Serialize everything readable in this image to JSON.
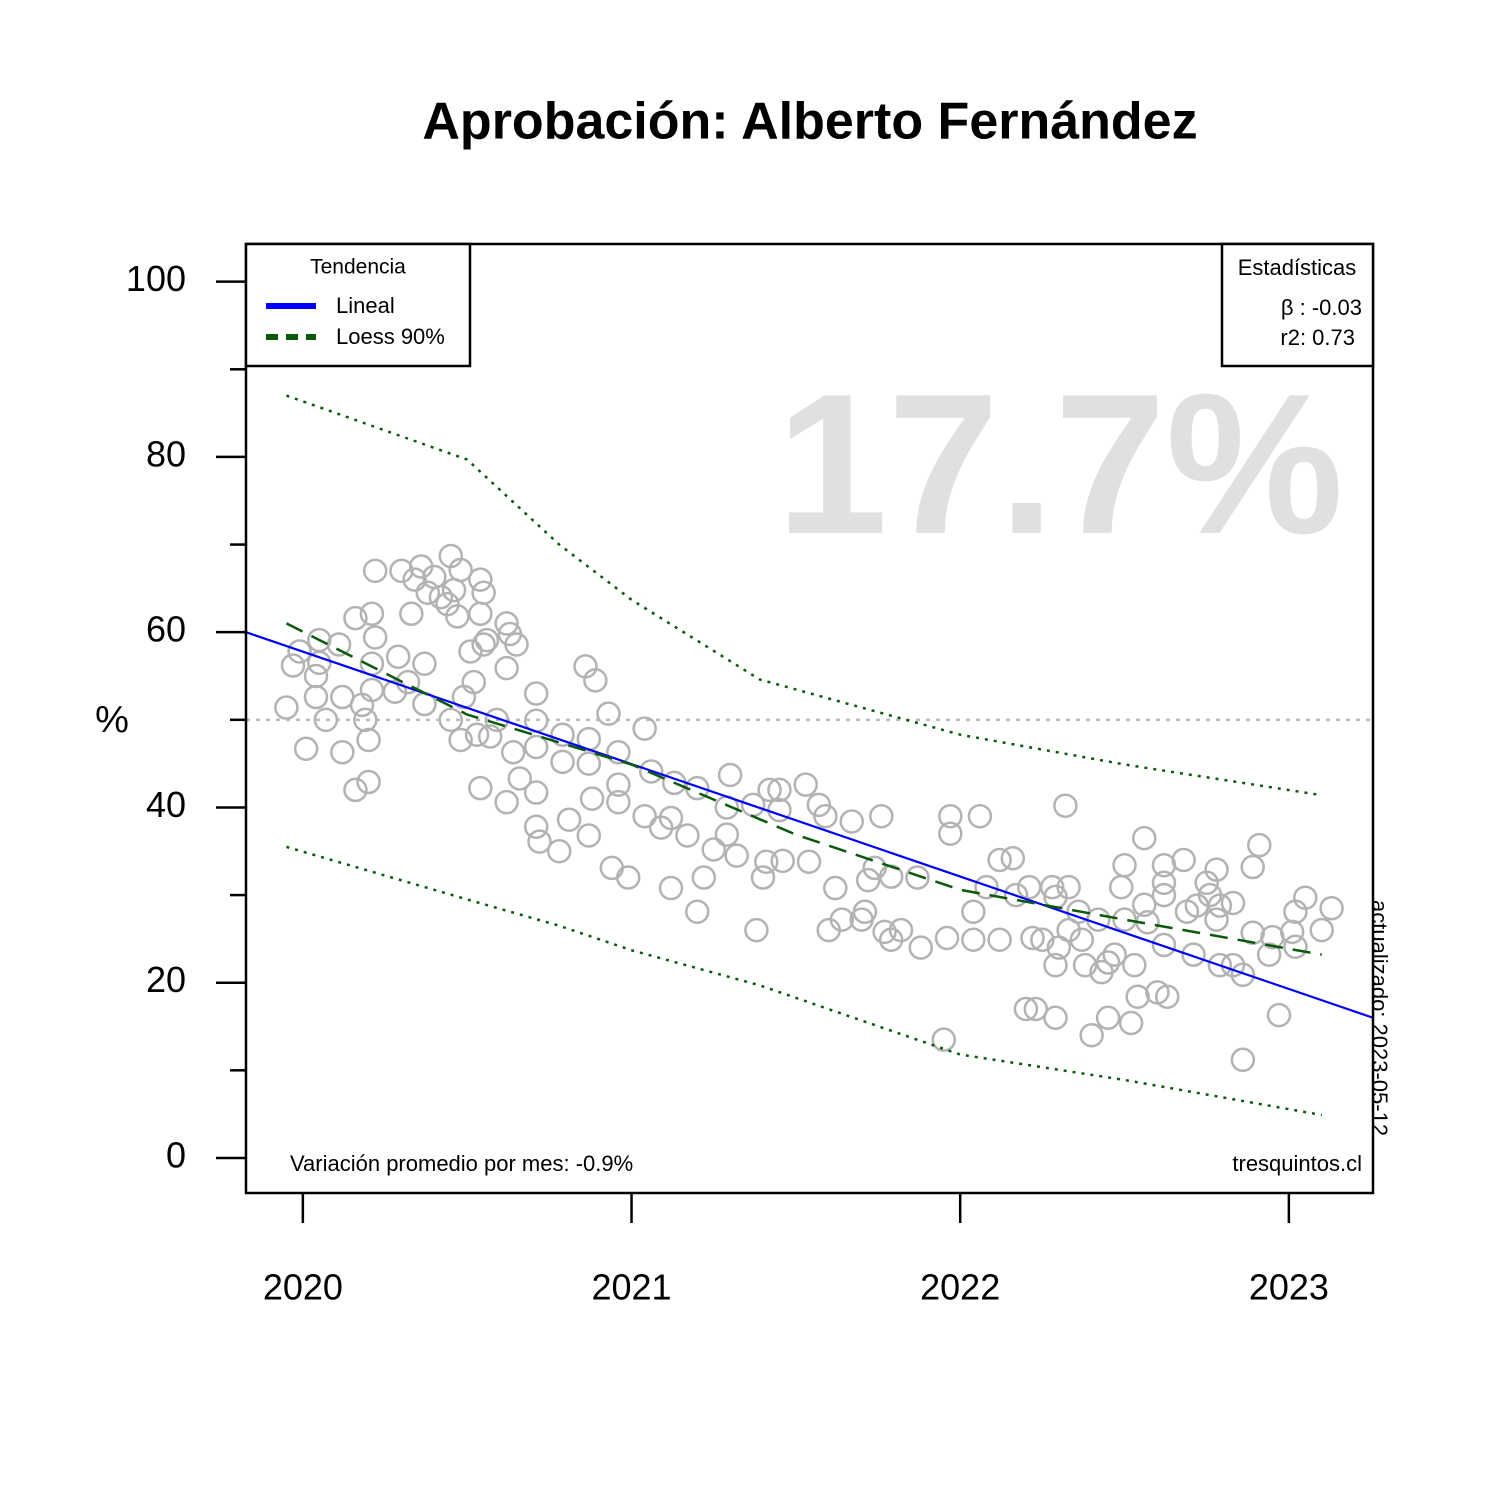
{
  "chart_data": {
    "type": "scatter",
    "title": "Aprobación: Alberto Fernández",
    "ylabel": "%",
    "xlim": [
      2019.827,
      2023.256
    ],
    "ylim": [
      -4,
      104.3
    ],
    "xticks": [
      2020,
      2021,
      2022,
      2023
    ],
    "yticks": [
      0,
      20,
      40,
      60,
      80,
      100
    ],
    "yminor": [
      10,
      30,
      50,
      70,
      90
    ],
    "hline": 50,
    "color": "#b3b3b3",
    "x": [
      2019.95,
      2019.97,
      2019.99,
      2020.01,
      2020.04,
      2020.04,
      2020.05,
      2020.05,
      2020.07,
      2020.11,
      2020.12,
      2020.12,
      2020.16,
      2020.16,
      2020.18,
      2020.19,
      2020.2,
      2020.2,
      2020.21,
      2020.21,
      2020.22,
      2020.22,
      2020.21,
      2020.28,
      2020.29,
      2020.3,
      2020.32,
      2020.33,
      2020.34,
      2020.36,
      2020.37,
      2020.37,
      2020.38,
      2020.4,
      2020.42,
      2020.44,
      2020.45,
      2020.46,
      2020.47,
      2020.48,
      2020.48,
      2020.45,
      2020.49,
      2020.51,
      2020.52,
      2020.53,
      2020.54,
      2020.54,
      2020.54,
      2020.55,
      2020.55,
      2020.56,
      2020.57,
      2020.59,
      2020.62,
      2020.62,
      2020.62,
      2020.63,
      2020.64,
      2020.65,
      2020.66,
      2020.71,
      2020.71,
      2020.71,
      2020.71,
      2020.71,
      2020.72,
      2020.78,
      2020.79,
      2020.79,
      2020.81,
      2020.86,
      2020.87,
      2020.88,
      2020.89,
      2020.87,
      2020.87,
      2020.93,
      2020.94,
      2020.96,
      2020.96,
      2020.96,
      2020.99,
      2021.04,
      2021.04,
      2021.06,
      2021.09,
      2021.12,
      2021.13,
      2021.12,
      2021.17,
      2021.2,
      2021.2,
      2021.22,
      2021.25,
      2021.29,
      2021.29,
      2021.3,
      2021.32,
      2021.37,
      2021.38,
      2021.4,
      2021.41,
      2021.42,
      2021.45,
      2021.46,
      2021.45,
      2021.53,
      2021.54,
      2021.57,
      2021.59,
      2021.6,
      2021.62,
      2021.64,
      2021.67,
      2021.7,
      2021.71,
      2021.72,
      2021.74,
      2021.76,
      2021.77,
      2021.79,
      2021.79,
      2021.82,
      2021.87,
      2021.88,
      2021.95,
      2021.96,
      2021.97,
      2021.97,
      2022.04,
      2022.04,
      2022.06,
      2022.08,
      2022.12,
      2022.12,
      2022.16,
      2022.17,
      2022.2,
      2022.21,
      2022.22,
      2022.23,
      2022.25,
      2022.28,
      2022.29,
      2022.29,
      2022.29,
      2022.3,
      2022.32,
      2022.33,
      2022.33,
      2022.36,
      2022.37,
      2022.38,
      2022.4,
      2022.42,
      2022.43,
      2022.45,
      2022.45,
      2022.47,
      2022.49,
      2022.5,
      2022.5,
      2022.52,
      2022.53,
      2022.54,
      2022.56,
      2022.56,
      2022.57,
      2022.6,
      2022.62,
      2022.62,
      2022.62,
      2022.62,
      2022.63,
      2022.68,
      2022.69,
      2022.71,
      2022.72,
      2022.75,
      2022.76,
      2022.78,
      2022.78,
      2022.79,
      2022.79,
      2022.83,
      2022.83,
      2022.86,
      2022.86,
      2022.89,
      2022.89,
      2022.91,
      2022.94,
      2022.95,
      2022.97,
      2023.01,
      2023.02,
      2023.05,
      2023.1,
      2023.13,
      2023.02
    ],
    "values": [
      51.4,
      56.2,
      57.8,
      46.7,
      55.0,
      52.6,
      59.1,
      56.5,
      50.0,
      58.6,
      52.6,
      46.3,
      61.6,
      42.0,
      51.7,
      50.0,
      42.9,
      47.7,
      53.4,
      62.1,
      67.0,
      59.4,
      56.4,
      53.2,
      57.2,
      67.0,
      54.3,
      62.1,
      66.0,
      67.5,
      51.8,
      56.4,
      64.5,
      66.3,
      64.0,
      63.2,
      68.7,
      64.8,
      61.8,
      67.1,
      47.7,
      50.0,
      52.6,
      57.8,
      54.3,
      48.3,
      42.2,
      66.0,
      62.1,
      64.5,
      58.6,
      59.1,
      48.1,
      50.0,
      40.6,
      61.0,
      55.9,
      59.8,
      46.3,
      58.6,
      43.3,
      53.0,
      41.7,
      49.9,
      46.9,
      37.8,
      36.1,
      35.0,
      48.3,
      45.2,
      38.6,
      56.1,
      36.8,
      41.0,
      54.5,
      45.0,
      47.8,
      50.7,
      33.1,
      40.6,
      46.3,
      42.6,
      32.0,
      49.0,
      39.0,
      44.1,
      37.7,
      30.8,
      42.8,
      38.8,
      36.8,
      42.2,
      28.1,
      32.0,
      35.2,
      40.0,
      36.9,
      43.7,
      34.5,
      40.3,
      26.0,
      32.0,
      33.8,
      42.0,
      42.0,
      33.9,
      39.7,
      42.6,
      33.8,
      40.3,
      39.0,
      26.0,
      30.8,
      27.2,
      38.4,
      27.2,
      28.1,
      31.7,
      33.1,
      39.0,
      25.8,
      24.9,
      32.1,
      26.0,
      32.0,
      24.0,
      13.5,
      25.1,
      39.0,
      37.0,
      24.9,
      28.1,
      39.0,
      30.9,
      24.9,
      34.0,
      34.2,
      30.0,
      17.0,
      30.9,
      25.1,
      17.0,
      24.9,
      30.9,
      16.0,
      22.0,
      29.8,
      24.0,
      40.2,
      30.9,
      26.0,
      28.1,
      24.9,
      22.0,
      14.0,
      27.2,
      21.2,
      22.3,
      16.0,
      23.2,
      30.9,
      33.4,
      27.2,
      15.4,
      22.0,
      18.4,
      36.5,
      28.9,
      26.9,
      18.9,
      33.4,
      31.4,
      30.0,
      24.3,
      18.4,
      34.0,
      28.1,
      23.2,
      28.8,
      31.4,
      30.0,
      32.9,
      27.2,
      22.0,
      28.8,
      29.1,
      22.0,
      20.9,
      11.2,
      33.2,
      25.7,
      35.7,
      23.2,
      25.2,
      16.3,
      25.8,
      28.1,
      29.7,
      26.0,
      28.5,
      24.1
    ],
    "legend_title": "Tendencia",
    "trend": [
      {
        "name": "Lineal",
        "color": "#0000ff",
        "x": [
          2019.827,
          2023.256
        ],
        "values": [
          60,
          16
        ]
      },
      {
        "name": "Loess 90%",
        "color": "#0b5a0b",
        "x": [
          2019.95,
          2020.5,
          2021.0,
          2021.5,
          2022.0,
          2022.5,
          2023.1
        ],
        "values": [
          61,
          50.6,
          44.9,
          36.9,
          30.6,
          27.2,
          23.2
        ]
      }
    ],
    "band": {
      "color": "#0b5a0b",
      "x": [
        2019.95,
        2020.5,
        2020.78,
        2021.0,
        2021.39,
        2022.0,
        2022.5,
        2023.1
      ],
      "upper": [
        87,
        79.7,
        70,
        63.7,
        54.6,
        48.3,
        44.9,
        41.4
      ],
      "lower": [
        35.5,
        29.5,
        26.5,
        23.7,
        19.7,
        11.8,
        8.9,
        4.9
      ]
    },
    "stats_title": "Estadísticas",
    "stats": [
      "β : -0.03",
      "r2: 0.73"
    ],
    "big_label": "17.7%",
    "note_left": "Variación promedio por mes: -0.9%",
    "note_right": "tresquintos.cl",
    "updated": "actualizado: 2023-05-12"
  }
}
